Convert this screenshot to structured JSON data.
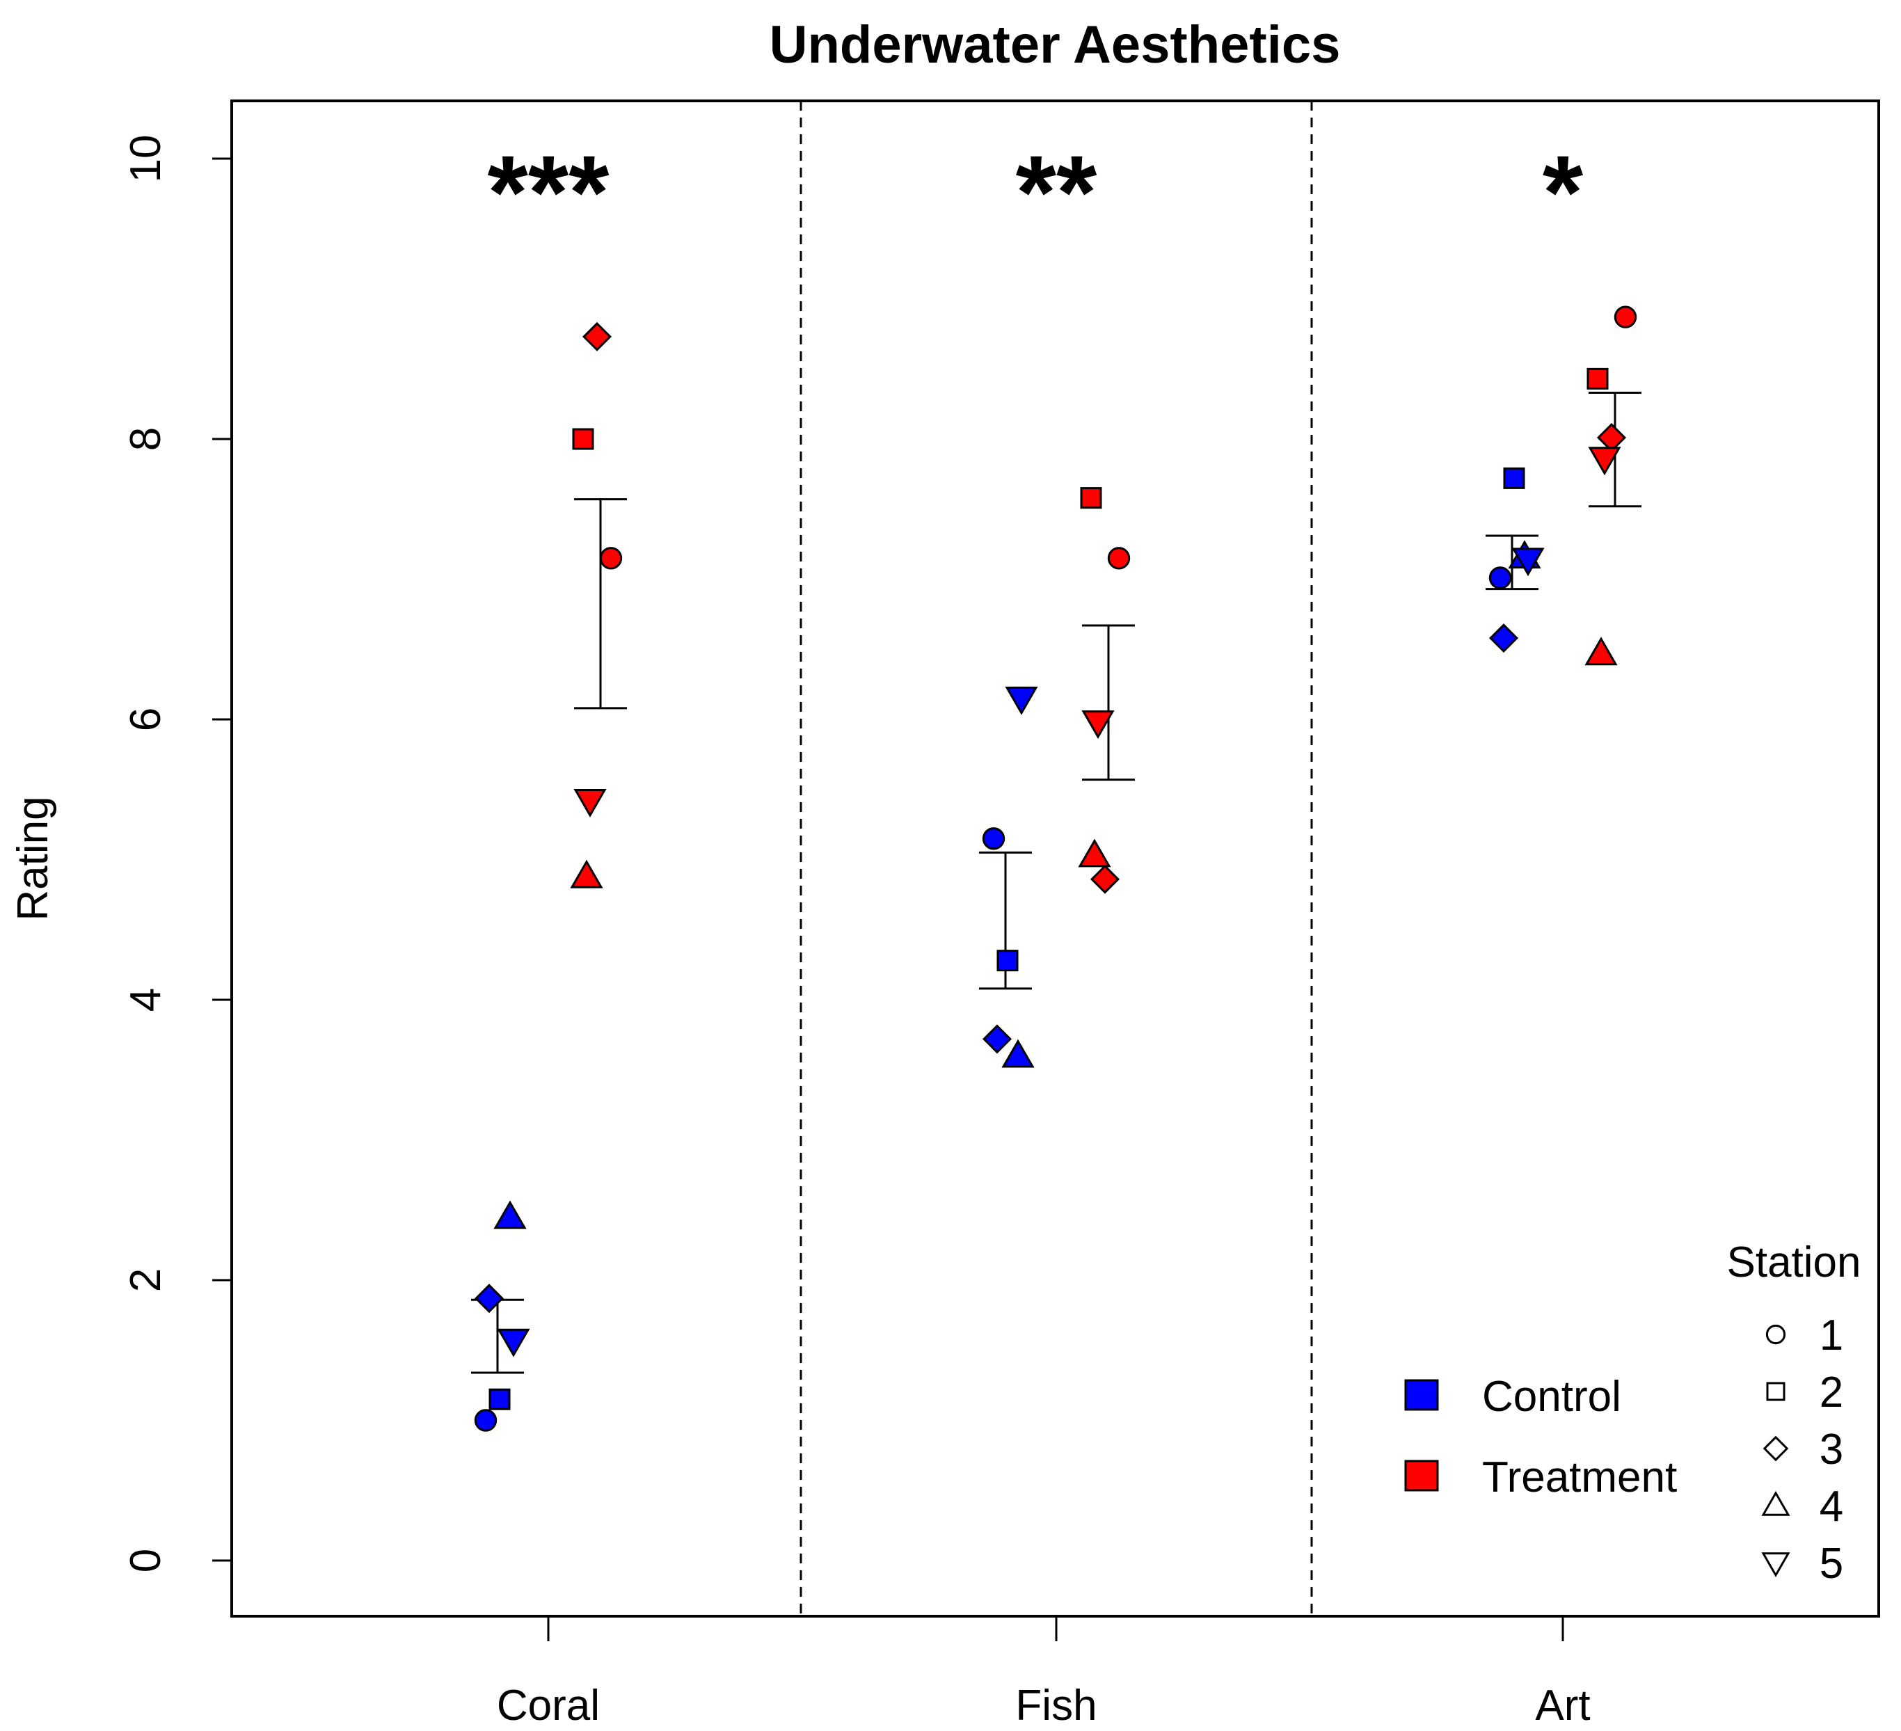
{
  "chart_data": {
    "type": "scatter",
    "title": "Underwater Aesthetics",
    "xlabel": "",
    "ylabel": "Rating",
    "ylim": [
      0,
      10
    ],
    "yticks": [
      "0",
      "2",
      "4",
      "6",
      "8",
      "10"
    ],
    "categories": [
      "Coral",
      "Fish",
      "Art"
    ],
    "significance": [
      "***",
      "**",
      "*"
    ],
    "groups": [
      {
        "name": "Control",
        "color": "#0000ff"
      },
      {
        "name": "Treatment",
        "color": "#ff0000"
      }
    ],
    "stations": [
      {
        "label": "1",
        "shape": "circle"
      },
      {
        "label": "2",
        "shape": "square"
      },
      {
        "label": "3",
        "shape": "diamond"
      },
      {
        "label": "4",
        "shape": "triangle-up"
      },
      {
        "label": "5",
        "shape": "triangle-down"
      }
    ],
    "points": [
      {
        "category": "Coral",
        "group": "Control",
        "station": 1,
        "value": 1.0
      },
      {
        "category": "Coral",
        "group": "Control",
        "station": 2,
        "value": 1.15
      },
      {
        "category": "Coral",
        "group": "Control",
        "station": 3,
        "value": 1.87
      },
      {
        "category": "Coral",
        "group": "Control",
        "station": 4,
        "value": 2.45
      },
      {
        "category": "Coral",
        "group": "Control",
        "station": 5,
        "value": 1.57
      },
      {
        "category": "Coral",
        "group": "Treatment",
        "station": 1,
        "value": 7.15
      },
      {
        "category": "Coral",
        "group": "Treatment",
        "station": 2,
        "value": 8.0
      },
      {
        "category": "Coral",
        "group": "Treatment",
        "station": 3,
        "value": 8.73
      },
      {
        "category": "Coral",
        "group": "Treatment",
        "station": 4,
        "value": 4.88
      },
      {
        "category": "Coral",
        "group": "Treatment",
        "station": 5,
        "value": 5.42
      },
      {
        "category": "Fish",
        "group": "Control",
        "station": 1,
        "value": 5.15
      },
      {
        "category": "Fish",
        "group": "Control",
        "station": 2,
        "value": 4.28
      },
      {
        "category": "Fish",
        "group": "Control",
        "station": 3,
        "value": 3.72
      },
      {
        "category": "Fish",
        "group": "Control",
        "station": 4,
        "value": 3.6
      },
      {
        "category": "Fish",
        "group": "Control",
        "station": 5,
        "value": 6.15
      },
      {
        "category": "Fish",
        "group": "Treatment",
        "station": 1,
        "value": 7.15
      },
      {
        "category": "Fish",
        "group": "Treatment",
        "station": 2,
        "value": 7.58
      },
      {
        "category": "Fish",
        "group": "Treatment",
        "station": 3,
        "value": 4.86
      },
      {
        "category": "Fish",
        "group": "Treatment",
        "station": 4,
        "value": 5.03
      },
      {
        "category": "Fish",
        "group": "Treatment",
        "station": 5,
        "value": 5.98
      },
      {
        "category": "Art",
        "group": "Control",
        "station": 1,
        "value": 7.01
      },
      {
        "category": "Art",
        "group": "Control",
        "station": 2,
        "value": 7.72
      },
      {
        "category": "Art",
        "group": "Control",
        "station": 3,
        "value": 6.58
      },
      {
        "category": "Art",
        "group": "Control",
        "station": 4,
        "value": 7.16
      },
      {
        "category": "Art",
        "group": "Control",
        "station": 5,
        "value": 7.14
      },
      {
        "category": "Art",
        "group": "Treatment",
        "station": 1,
        "value": 8.87
      },
      {
        "category": "Art",
        "group": "Treatment",
        "station": 2,
        "value": 8.43
      },
      {
        "category": "Art",
        "group": "Treatment",
        "station": 3,
        "value": 8.01
      },
      {
        "category": "Art",
        "group": "Treatment",
        "station": 4,
        "value": 6.47
      },
      {
        "category": "Art",
        "group": "Treatment",
        "station": 5,
        "value": 7.86
      }
    ],
    "error_bars": [
      {
        "category": "Coral",
        "group": "Control",
        "low": 1.34,
        "high": 1.86
      },
      {
        "category": "Coral",
        "group": "Treatment",
        "low": 6.08,
        "high": 7.57
      },
      {
        "category": "Fish",
        "group": "Control",
        "low": 4.08,
        "high": 5.05
      },
      {
        "category": "Fish",
        "group": "Treatment",
        "low": 5.57,
        "high": 6.67
      },
      {
        "category": "Art",
        "group": "Control",
        "low": 6.93,
        "high": 7.31
      },
      {
        "category": "Art",
        "group": "Treatment",
        "low": 7.52,
        "high": 8.33
      }
    ],
    "legend": {
      "group_title": "",
      "station_title": "Station",
      "placement": "bottom-right"
    }
  }
}
